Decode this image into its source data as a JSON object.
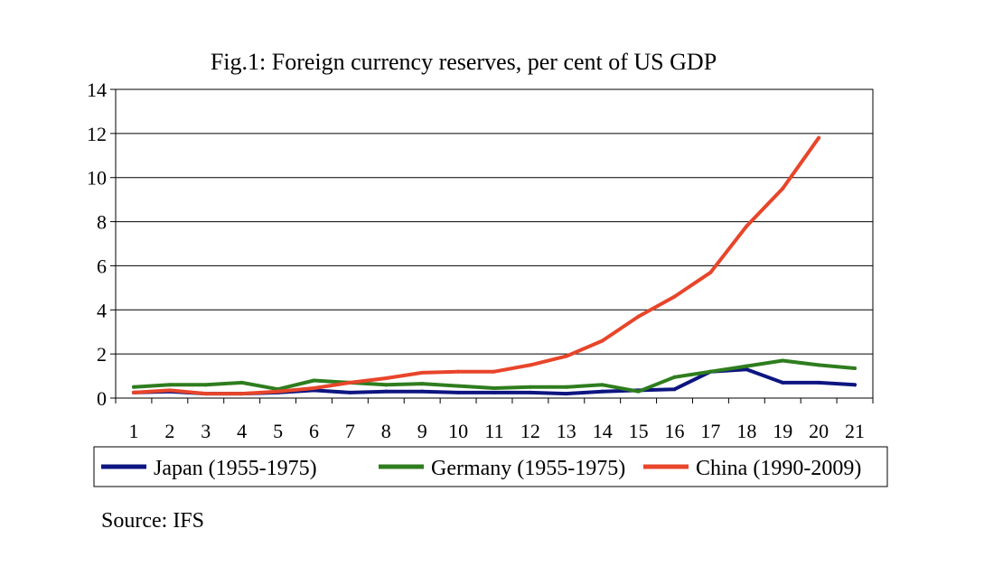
{
  "chart_data": {
    "type": "line",
    "title": "Fig.1: Foreign currency reserves, per cent of US GDP",
    "xlabel": "",
    "ylabel": "",
    "categories": [
      "1",
      "2",
      "3",
      "4",
      "5",
      "6",
      "7",
      "8",
      "9",
      "10",
      "11",
      "12",
      "13",
      "14",
      "15",
      "16",
      "17",
      "18",
      "19",
      "20",
      "21"
    ],
    "ylim": [
      0,
      14
    ],
    "yticks": [
      "0",
      "2",
      "4",
      "6",
      "8",
      "10",
      "12",
      "14"
    ],
    "grid": true,
    "legend_position": "bottom",
    "series": [
      {
        "name": "Japan (1955-1975)",
        "color": "#0d1580",
        "values": [
          0.25,
          0.3,
          0.2,
          0.2,
          0.25,
          0.35,
          0.25,
          0.3,
          0.3,
          0.25,
          0.25,
          0.25,
          0.2,
          0.3,
          0.35,
          0.4,
          1.2,
          1.3,
          0.7,
          0.7,
          0.6
        ]
      },
      {
        "name": "Germany (1955-1975)",
        "color": "#2e7d1e",
        "values": [
          0.5,
          0.6,
          0.6,
          0.7,
          0.4,
          0.8,
          0.7,
          0.6,
          0.65,
          0.55,
          0.45,
          0.5,
          0.5,
          0.6,
          0.3,
          0.95,
          1.2,
          1.45,
          1.7,
          1.5,
          1.35
        ]
      },
      {
        "name": "China (1990-2009)",
        "color": "#e8452a",
        "values": [
          0.25,
          0.35,
          0.2,
          0.2,
          0.3,
          0.45,
          0.7,
          0.9,
          1.15,
          1.2,
          1.2,
          1.5,
          1.9,
          2.6,
          3.7,
          4.6,
          5.7,
          7.8,
          9.5,
          11.8,
          null
        ]
      }
    ]
  },
  "source_note": "Source: IFS"
}
